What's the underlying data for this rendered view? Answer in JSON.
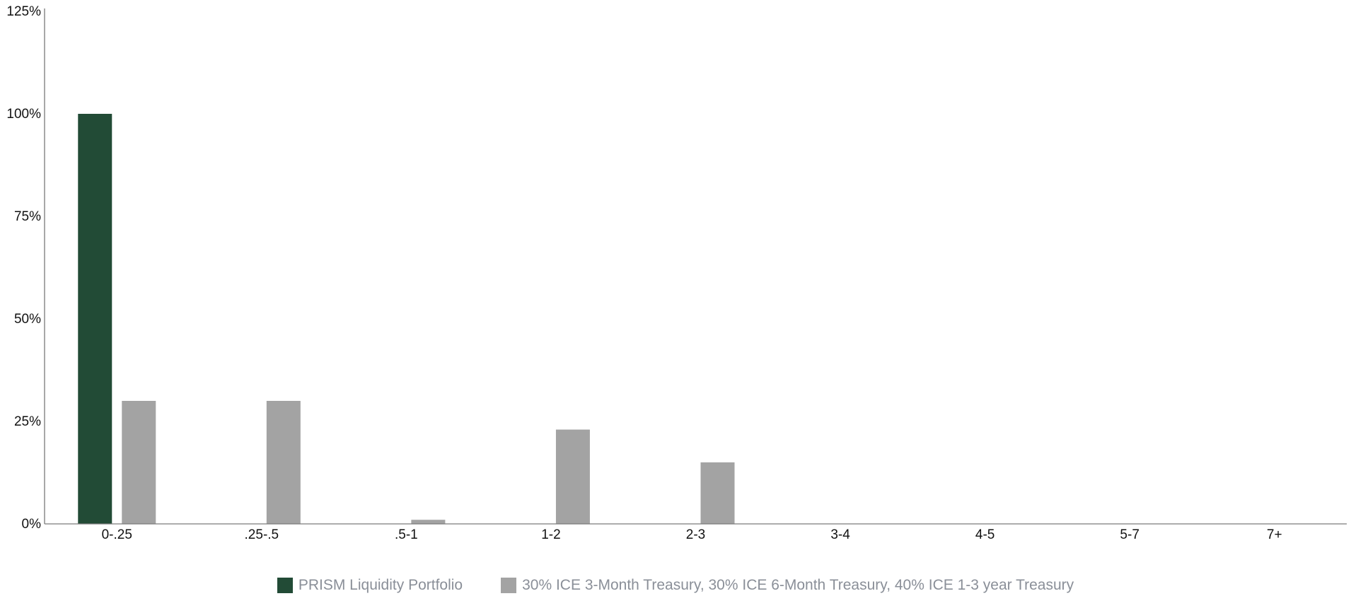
{
  "chart_data": {
    "type": "bar",
    "categories": [
      "0-.25",
      ".25-.5",
      ".5-1",
      "1-2",
      "2-3",
      "3-4",
      "4-5",
      "5-7",
      "7+"
    ],
    "series": [
      {
        "name": "PRISM Liquidity Portfolio",
        "color": "#224b36",
        "values": [
          100,
          0,
          0,
          0,
          0,
          0,
          0,
          0,
          0
        ]
      },
      {
        "name": "30% ICE 3-Month Treasury, 30% ICE 6-Month Treasury, 40% ICE 1-3 year Treasury",
        "color": "#a3a3a3",
        "values": [
          30,
          30,
          1,
          23,
          15,
          0,
          0,
          0,
          0
        ]
      }
    ],
    "yticks": [
      0,
      25,
      50,
      75,
      100,
      125
    ],
    "ytick_labels": [
      "0%",
      "25%",
      "50%",
      "75%",
      "100%",
      "125%"
    ],
    "ylim": [
      0,
      125
    ],
    "title": "",
    "xlabel": "",
    "ylabel": "",
    "grid": false,
    "legend_position": "bottom-center"
  }
}
